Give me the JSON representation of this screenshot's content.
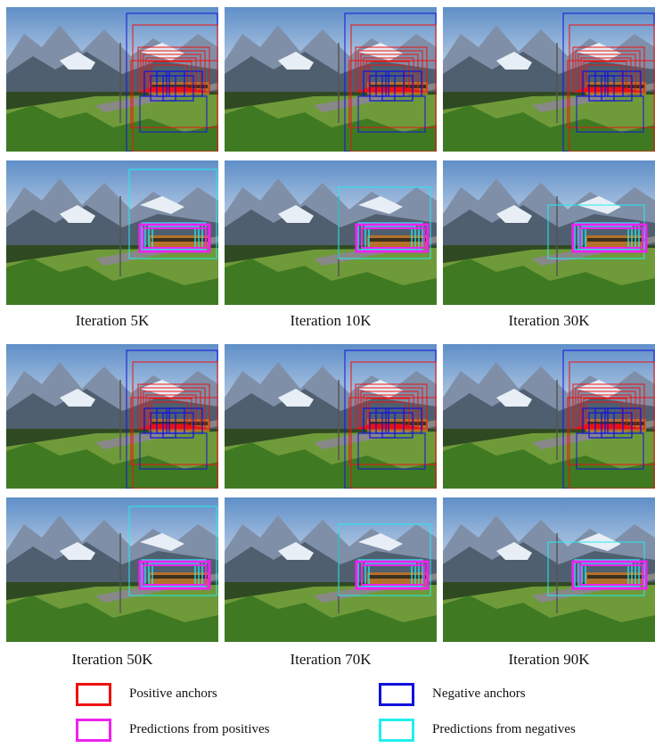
{
  "panels": [
    {
      "caption": "Iteration 5K"
    },
    {
      "caption": "Iteration 10K"
    },
    {
      "caption": "Iteration 30K"
    },
    {
      "caption": "Iteration 50K"
    },
    {
      "caption": "Iteration 70K"
    },
    {
      "caption": "Iteration 90K"
    }
  ],
  "legend": [
    {
      "label": "Positive anchors",
      "color": "#ee1111"
    },
    {
      "label": "Negative anchors",
      "color": "#1111dd"
    },
    {
      "label": "Predictions from positives",
      "color": "#ee22ee"
    },
    {
      "label": "Predictions from negatives",
      "color": "#22eeee"
    }
  ]
}
